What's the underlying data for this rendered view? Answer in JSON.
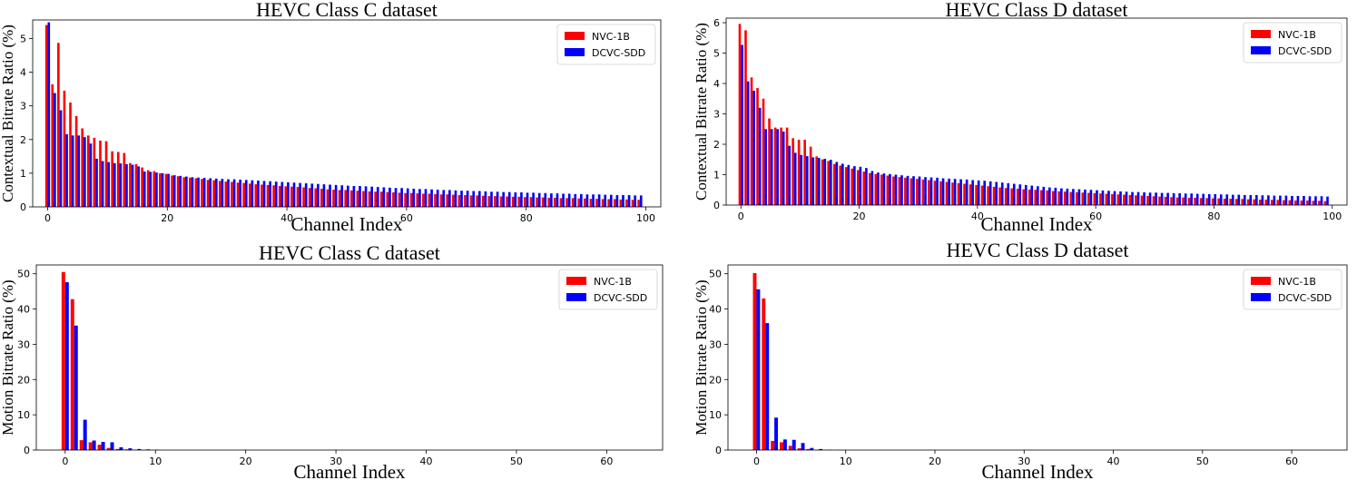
{
  "chart_data": [
    {
      "id": "c-ctx",
      "type": "bar",
      "title": "HEVC Class C dataset",
      "xlabel": "Channel Index",
      "ylabel": "Contextual Bitrate Ratio (%)",
      "xlim": [
        -2.5,
        102.5
      ],
      "ylim": [
        0,
        5.55
      ],
      "xticks": [
        0,
        20,
        40,
        60,
        80,
        100
      ],
      "yticks": [
        0,
        1,
        2,
        3,
        4,
        5
      ],
      "legend_position": "top-right",
      "series": [
        {
          "name": "NVC-1B",
          "color": "#ff0000",
          "values": [
            5.4,
            3.64,
            4.87,
            3.45,
            3.1,
            2.7,
            2.33,
            2.12,
            2.05,
            1.97,
            1.95,
            1.65,
            1.63,
            1.6,
            1.3,
            1.27,
            1.17,
            1.09,
            1.06,
            1.0,
            0.98,
            0.93,
            0.91,
            0.88,
            0.87,
            0.85,
            0.83,
            0.8,
            0.79,
            0.77,
            0.75,
            0.74,
            0.72,
            0.71,
            0.69,
            0.67,
            0.66,
            0.65,
            0.64,
            0.62,
            0.61,
            0.6,
            0.59,
            0.58,
            0.56,
            0.55,
            0.54,
            0.52,
            0.51,
            0.5,
            0.5,
            0.49,
            0.48,
            0.47,
            0.46,
            0.45,
            0.45,
            0.44,
            0.43,
            0.42,
            0.41,
            0.41,
            0.4,
            0.39,
            0.39,
            0.38,
            0.37,
            0.37,
            0.36,
            0.35,
            0.35,
            0.34,
            0.34,
            0.33,
            0.32,
            0.32,
            0.31,
            0.31,
            0.3,
            0.3,
            0.29,
            0.29,
            0.28,
            0.28,
            0.27,
            0.27,
            0.26,
            0.26,
            0.26,
            0.25,
            0.25,
            0.24,
            0.24,
            0.23,
            0.23,
            0.23,
            0.22,
            0.22,
            0.21,
            0.21
          ]
        },
        {
          "name": "DCVC-SDD",
          "color": "#0000ff",
          "values": [
            5.48,
            3.38,
            2.87,
            2.16,
            2.12,
            2.12,
            2.07,
            1.88,
            1.43,
            1.36,
            1.33,
            1.3,
            1.29,
            1.27,
            1.25,
            1.2,
            1.05,
            1.04,
            1.02,
            1.0,
            0.98,
            0.94,
            0.92,
            0.9,
            0.88,
            0.87,
            0.86,
            0.85,
            0.84,
            0.83,
            0.82,
            0.82,
            0.81,
            0.8,
            0.79,
            0.78,
            0.77,
            0.76,
            0.75,
            0.74,
            0.73,
            0.72,
            0.71,
            0.7,
            0.69,
            0.68,
            0.67,
            0.66,
            0.65,
            0.64,
            0.63,
            0.62,
            0.62,
            0.61,
            0.6,
            0.59,
            0.58,
            0.57,
            0.56,
            0.56,
            0.55,
            0.54,
            0.53,
            0.53,
            0.52,
            0.51,
            0.5,
            0.5,
            0.49,
            0.48,
            0.48,
            0.47,
            0.47,
            0.46,
            0.45,
            0.45,
            0.44,
            0.44,
            0.43,
            0.43,
            0.42,
            0.42,
            0.41,
            0.41,
            0.4,
            0.4,
            0.39,
            0.39,
            0.38,
            0.38,
            0.37,
            0.37,
            0.37,
            0.36,
            0.36,
            0.35,
            0.35,
            0.35,
            0.34,
            0.34
          ]
        }
      ]
    },
    {
      "id": "d-ctx",
      "type": "bar",
      "title": "HEVC Class D dataset",
      "xlabel": "Channel Index",
      "ylabel": "Contextual Bitrate Ratio (%)",
      "xlim": [
        -2.5,
        102.5
      ],
      "ylim": [
        0,
        6.15
      ],
      "xticks": [
        0,
        20,
        40,
        60,
        80,
        100
      ],
      "yticks": [
        0,
        1,
        2,
        3,
        4,
        5,
        6
      ],
      "legend_position": "top-right",
      "series": [
        {
          "name": "NVC-1B",
          "color": "#ff0000",
          "values": [
            5.96,
            5.75,
            4.2,
            3.85,
            3.5,
            2.85,
            2.55,
            2.55,
            2.55,
            2.2,
            2.15,
            2.15,
            1.92,
            1.6,
            1.5,
            1.45,
            1.35,
            1.3,
            1.25,
            1.2,
            1.15,
            1.1,
            1.05,
            1.02,
            1.0,
            0.97,
            0.94,
            0.92,
            0.9,
            0.88,
            0.86,
            0.84,
            0.82,
            0.8,
            0.78,
            0.76,
            0.74,
            0.72,
            0.7,
            0.68,
            0.66,
            0.64,
            0.62,
            0.6,
            0.58,
            0.56,
            0.55,
            0.54,
            0.52,
            0.51,
            0.5,
            0.49,
            0.48,
            0.46,
            0.45,
            0.44,
            0.43,
            0.42,
            0.41,
            0.4,
            0.39,
            0.38,
            0.37,
            0.36,
            0.35,
            0.34,
            0.33,
            0.32,
            0.31,
            0.3,
            0.29,
            0.28,
            0.27,
            0.26,
            0.25,
            0.25,
            0.24,
            0.24,
            0.23,
            0.23,
            0.22,
            0.22,
            0.21,
            0.21,
            0.2,
            0.2,
            0.19,
            0.19,
            0.18,
            0.18,
            0.17,
            0.17,
            0.16,
            0.16,
            0.15,
            0.15,
            0.15,
            0.14,
            0.14,
            0.13
          ]
        },
        {
          "name": "DCVC-SDD",
          "color": "#0000ff",
          "values": [
            5.27,
            4.07,
            3.76,
            3.2,
            2.5,
            2.5,
            2.5,
            2.42,
            1.95,
            1.72,
            1.65,
            1.61,
            1.57,
            1.55,
            1.52,
            1.49,
            1.42,
            1.36,
            1.32,
            1.28,
            1.26,
            1.22,
            1.12,
            1.07,
            1.04,
            1.02,
            1.0,
            0.98,
            0.96,
            0.95,
            0.94,
            0.92,
            0.91,
            0.9,
            0.88,
            0.87,
            0.86,
            0.85,
            0.84,
            0.82,
            0.81,
            0.8,
            0.78,
            0.76,
            0.74,
            0.72,
            0.7,
            0.68,
            0.66,
            0.64,
            0.62,
            0.6,
            0.58,
            0.57,
            0.55,
            0.54,
            0.53,
            0.52,
            0.51,
            0.5,
            0.49,
            0.48,
            0.47,
            0.46,
            0.45,
            0.44,
            0.43,
            0.43,
            0.42,
            0.41,
            0.41,
            0.4,
            0.4,
            0.39,
            0.39,
            0.38,
            0.38,
            0.37,
            0.37,
            0.36,
            0.36,
            0.35,
            0.35,
            0.34,
            0.34,
            0.33,
            0.33,
            0.33,
            0.32,
            0.32,
            0.31,
            0.31,
            0.31,
            0.3,
            0.3,
            0.3,
            0.29,
            0.29,
            0.29,
            0.28
          ]
        }
      ]
    },
    {
      "id": "c-mot",
      "type": "bar",
      "title": "HEVC Class C dataset",
      "xlabel": "Channel Index",
      "ylabel": "Motion Bitrate Ratio (%)",
      "xlim": [
        -3.2,
        66.2
      ],
      "ylim": [
        0,
        52.5
      ],
      "xticks": [
        0,
        10,
        20,
        30,
        40,
        50,
        60
      ],
      "yticks": [
        0,
        10,
        20,
        30,
        40,
        50
      ],
      "legend_position": "top-right",
      "series": [
        {
          "name": "NVC-1B",
          "color": "#ff0000",
          "values": [
            50.5,
            42.8,
            2.8,
            2.2,
            1.5,
            0.6,
            0.3,
            0.2,
            0.1,
            0.05,
            0.03,
            0,
            0,
            0,
            0,
            0,
            0,
            0,
            0,
            0,
            0,
            0,
            0,
            0,
            0,
            0,
            0,
            0,
            0,
            0,
            0,
            0,
            0,
            0,
            0,
            0,
            0,
            0,
            0,
            0,
            0,
            0,
            0,
            0,
            0,
            0,
            0,
            0,
            0,
            0,
            0,
            0,
            0,
            0,
            0,
            0,
            0,
            0,
            0,
            0,
            0,
            0,
            0,
            0
          ]
        },
        {
          "name": "DCVC-SDD",
          "color": "#0000ff",
          "values": [
            47.6,
            35.3,
            8.6,
            2.7,
            2.3,
            2.2,
            0.8,
            0.5,
            0.3,
            0.2,
            0.1,
            0,
            0,
            0,
            0,
            0,
            0,
            0,
            0,
            0,
            0,
            0,
            0,
            0,
            0,
            0,
            0,
            0,
            0,
            0,
            0,
            0,
            0,
            0,
            0,
            0,
            0,
            0,
            0,
            0,
            0,
            0,
            0,
            0,
            0,
            0,
            0,
            0,
            0,
            0,
            0,
            0,
            0,
            0,
            0,
            0,
            0,
            0,
            0,
            0,
            0,
            0,
            0,
            0
          ]
        }
      ]
    },
    {
      "id": "d-mot",
      "type": "bar",
      "title": "HEVC Class D dataset",
      "xlabel": "Channel Index",
      "ylabel": "Motion Bitrate Ratio (%)",
      "xlim": [
        -3.2,
        66.2
      ],
      "ylim": [
        0,
        52.5
      ],
      "xticks": [
        0,
        10,
        20,
        30,
        40,
        50,
        60
      ],
      "yticks": [
        0,
        10,
        20,
        30,
        40,
        50
      ],
      "legend_position": "top-right",
      "series": [
        {
          "name": "NVC-1B",
          "color": "#ff0000",
          "values": [
            50.2,
            43.0,
            2.6,
            2.2,
            1.2,
            0.5,
            0.3,
            0.1,
            0.05,
            0,
            0,
            0,
            0,
            0,
            0,
            0,
            0,
            0,
            0,
            0,
            0,
            0,
            0,
            0,
            0,
            0,
            0,
            0,
            0,
            0,
            0,
            0,
            0,
            0,
            0,
            0,
            0,
            0,
            0,
            0,
            0,
            0,
            0,
            0,
            0,
            0,
            0,
            0,
            0,
            0,
            0,
            0,
            0,
            0,
            0,
            0,
            0,
            0,
            0,
            0,
            0,
            0,
            0,
            0
          ]
        },
        {
          "name": "DCVC-SDD",
          "color": "#0000ff",
          "values": [
            45.6,
            36.0,
            9.2,
            3.0,
            2.9,
            2.0,
            0.6,
            0.3,
            0.1,
            0.05,
            0,
            0,
            0,
            0,
            0,
            0,
            0,
            0,
            0,
            0,
            0,
            0,
            0,
            0,
            0,
            0,
            0,
            0,
            0,
            0,
            0,
            0,
            0,
            0,
            0,
            0,
            0,
            0,
            0,
            0,
            0,
            0,
            0,
            0,
            0,
            0,
            0,
            0,
            0,
            0,
            0,
            0,
            0,
            0,
            0,
            0,
            0,
            0,
            0,
            0,
            0,
            0,
            0,
            0
          ]
        }
      ]
    }
  ]
}
